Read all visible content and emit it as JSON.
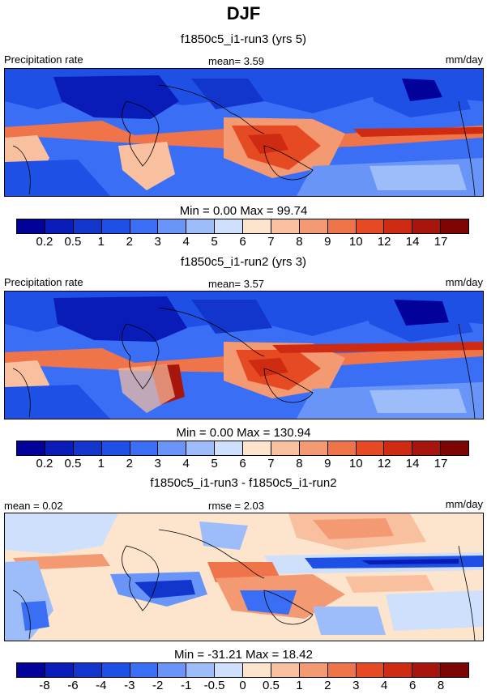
{
  "title": "DJF",
  "colors": {
    "precip_scale": [
      "#02029a",
      "#0a1cb8",
      "#1235cc",
      "#1f50e6",
      "#3a6ff5",
      "#6a95f8",
      "#9dbcfa",
      "#cfe0fc",
      "#fde4cc",
      "#f9c0a0",
      "#f49a72",
      "#ef744a",
      "#e64a22",
      "#cf2a12",
      "#a8150c",
      "#7d0505"
    ],
    "diff_scale": [
      "#02029a",
      "#0a1cb8",
      "#1235cc",
      "#1f50e6",
      "#3a6ff5",
      "#6a95f8",
      "#9dbcfa",
      "#cfe0fc",
      "#fde4cc",
      "#f9c0a0",
      "#f49a72",
      "#ef744a",
      "#e64a22",
      "#cf2a12",
      "#a8150c",
      "#7d0505"
    ]
  },
  "panels": [
    {
      "name": "run3",
      "case_title": "f1850c5_i1-run3 (yrs 5)",
      "left_label": "Precipitation rate",
      "center_label": "mean=   3.59",
      "units": "mm/day",
      "minmax": "Min =   0.00 Max =  99.74",
      "scale": "precip",
      "tick_labels": [
        "0.2",
        "0.5",
        "1",
        "2",
        "3",
        "4",
        "5",
        "6",
        "7",
        "8",
        "9",
        "10",
        "12",
        "14",
        "17"
      ]
    },
    {
      "name": "run2",
      "case_title": "f1850c5_i1-run2 (yrs 3)",
      "left_label": "Precipitation rate",
      "center_label": "mean=   3.57",
      "units": "mm/day",
      "minmax": "Min =   0.00 Max = 130.94",
      "scale": "precip",
      "tick_labels": [
        "0.2",
        "0.5",
        "1",
        "2",
        "3",
        "4",
        "5",
        "6",
        "7",
        "8",
        "9",
        "10",
        "12",
        "14",
        "17"
      ]
    },
    {
      "name": "diff",
      "case_title": "f1850c5_i1-run3 - f1850c5_i1-run2",
      "left_label": "mean =   0.02",
      "center_label": "rmse =   2.03",
      "units": "mm/day",
      "minmax": "Min = -31.21 Max =  18.42",
      "scale": "diff",
      "tick_labels": [
        "-8",
        "-6",
        "-4",
        "-3",
        "-2",
        "-1",
        "-0.5",
        "0",
        "0.5",
        "1",
        "2",
        "3",
        "4",
        "6",
        "8"
      ]
    }
  ]
}
